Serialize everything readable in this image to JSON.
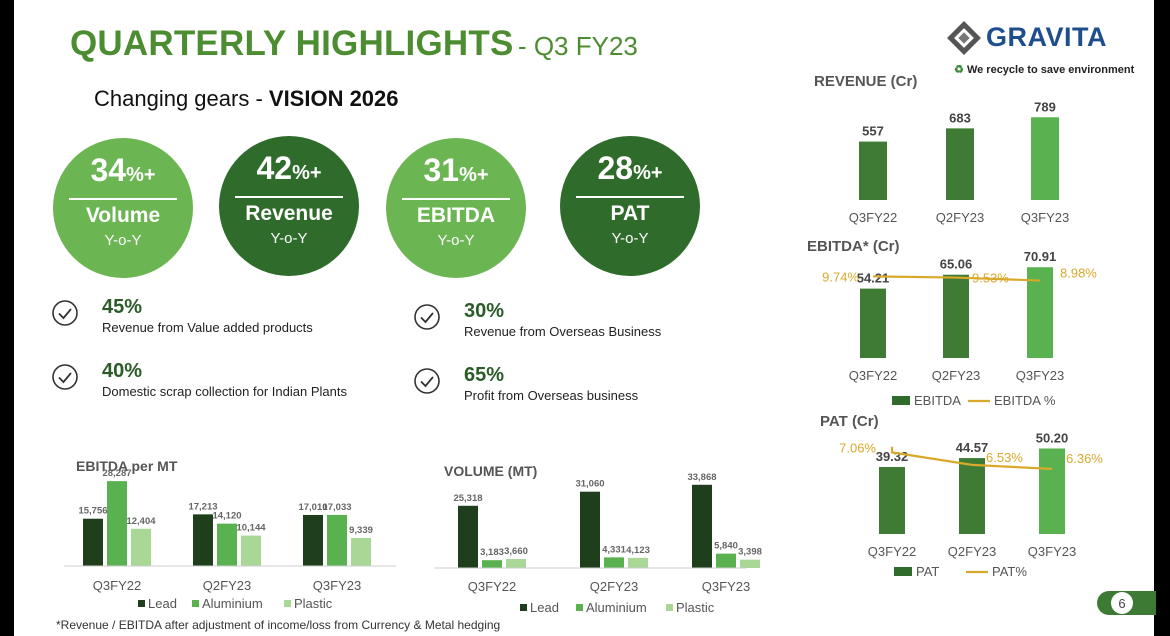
{
  "header": {
    "title": "QUARTERLY HIGHLIGHTS",
    "title_suffix": "- Q3 FY23",
    "subtitle_prefix": "Changing gears - ",
    "subtitle_bold": "VISION 2026"
  },
  "brand": {
    "name": "GRAVITA",
    "tagline": "We recycle to save environment",
    "colors": {
      "light_green": "#6bb553",
      "dark_green": "#2f6b2b",
      "title_green": "#4d8d32",
      "gold": "#d9a92b",
      "pale_green": "#a8d796"
    }
  },
  "circles": [
    {
      "value": "34",
      "suffix": "%+",
      "label": "Volume",
      "sub": "Y-o-Y"
    },
    {
      "value": "42",
      "suffix": "%+",
      "label": "Revenue",
      "sub": "Y-o-Y"
    },
    {
      "value": "31",
      "suffix": "%+",
      "label": "EBITDA",
      "sub": "Y-o-Y"
    },
    {
      "value": "28",
      "suffix": "%+",
      "label": "PAT",
      "sub": "Y-o-Y"
    }
  ],
  "highlights": [
    {
      "value": "45%",
      "text": "Revenue from Value added products"
    },
    {
      "value": "40%",
      "text": "Domestic scrap collection for Indian Plants"
    },
    {
      "value": "30%",
      "text": "Revenue from Overseas Business"
    },
    {
      "value": "65%",
      "text": "Profit from Overseas business"
    }
  ],
  "footnote": "*Revenue / EBITDA after adjustment of income/loss from Currency & Metal hedging",
  "page_number": "6",
  "chart_data": [
    {
      "id": "revenue",
      "type": "bar",
      "title": "REVENUE (Cr)",
      "categories": [
        "Q3FY22",
        "Q2FY23",
        "Q3FY23"
      ],
      "values": [
        557,
        683,
        789
      ],
      "labels": [
        "557",
        "683",
        "789"
      ],
      "ylim": [
        0,
        820
      ]
    },
    {
      "id": "ebitda",
      "type": "bar+line",
      "title": "EBITDA* (Cr)",
      "categories": [
        "Q3FY22",
        "Q2FY23",
        "Q3FY23"
      ],
      "values": [
        54.21,
        65.06,
        70.91
      ],
      "labels": [
        "54.21",
        "65.06",
        "70.91"
      ],
      "ylim": [
        0,
        75
      ],
      "line_name": "EBITDA %",
      "bar_name": "EBITDA",
      "line_values": [
        9.74,
        9.53,
        8.98
      ],
      "line_labels": [
        "9.74%",
        "9.53%",
        "8.98%"
      ],
      "line_ylim": [
        -5.3,
        12.4
      ]
    },
    {
      "id": "pat",
      "type": "bar+line",
      "title": "PAT (Cr)",
      "categories": [
        "Q3FY22",
        "Q2FY23",
        "Q3FY23"
      ],
      "values": [
        39.32,
        44.57,
        50.2
      ],
      "labels": [
        "39.32",
        "44.57",
        "50.20"
      ],
      "ylim": [
        0,
        54
      ],
      "line_name": "PAT%",
      "bar_name": "PAT",
      "line_values": [
        7.06,
        6.53,
        6.36
      ],
      "line_labels": [
        "7.06%",
        "6.53%",
        "6.36%"
      ],
      "line_ylim": [
        3.6,
        7.5
      ]
    },
    {
      "id": "ebitda_mt",
      "type": "bar",
      "title": "EBITDA per MT",
      "categories": [
        "Q3FY22",
        "Q2FY23",
        "Q3FY23"
      ],
      "series": [
        {
          "name": "Lead",
          "values": [
            15756,
            17213,
            17010
          ],
          "labels": [
            "15,756",
            "17,213",
            "17,010"
          ]
        },
        {
          "name": "Aluminium",
          "values": [
            28287,
            14120,
            17033
          ],
          "labels": [
            "28,287",
            "14,120",
            "17,033"
          ]
        },
        {
          "name": "Plastic",
          "values": [
            12404,
            10144,
            9339
          ],
          "labels": [
            "12,404",
            "10,144",
            "9,339"
          ]
        }
      ],
      "ylim": [
        0,
        29000
      ]
    },
    {
      "id": "volume",
      "type": "bar",
      "title": "VOLUME (MT)",
      "categories": [
        "Q3FY22",
        "Q2FY23",
        "Q3FY23"
      ],
      "series": [
        {
          "name": "Lead",
          "values": [
            25318,
            31060,
            33868
          ],
          "labels": [
            "25,318",
            "31,060",
            "33,868"
          ]
        },
        {
          "name": "Aluminium",
          "values": [
            3183,
            4331,
            5840
          ],
          "labels": [
            "3,183",
            "4,331",
            "5,840"
          ]
        },
        {
          "name": "Plastic",
          "values": [
            3660,
            4123,
            3398
          ],
          "labels": [
            "3,660",
            "4,123",
            "3,398"
          ]
        }
      ],
      "ylim": [
        0,
        35000
      ]
    }
  ]
}
